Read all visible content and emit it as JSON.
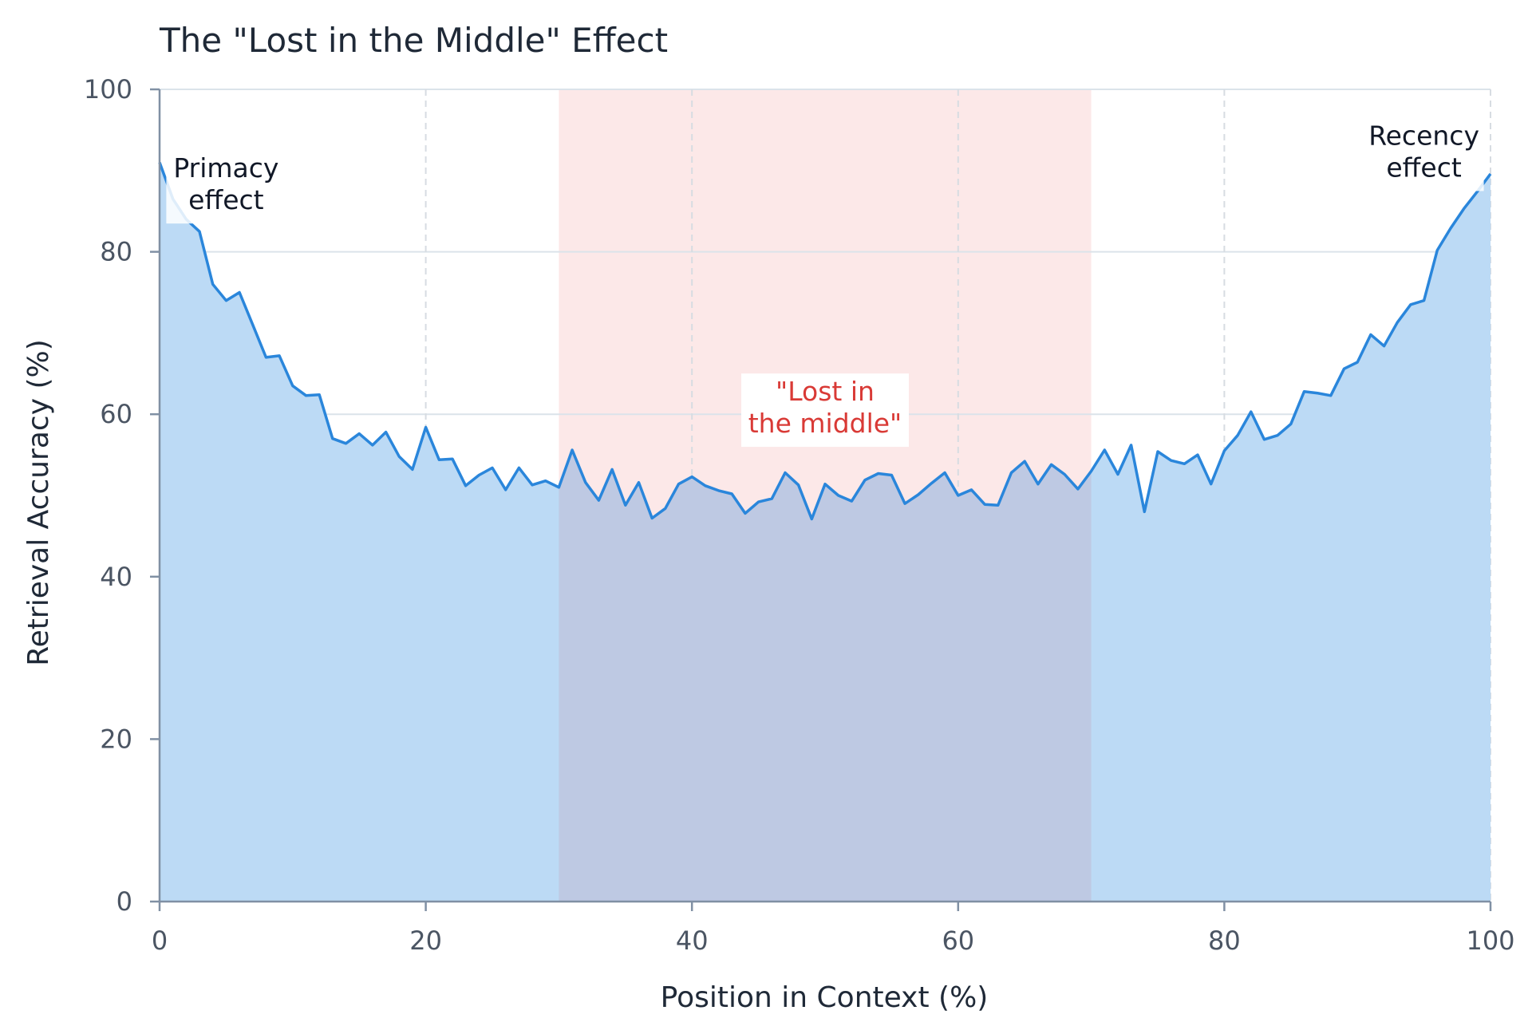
{
  "chart_data": {
    "type": "area",
    "title": "The \"Lost in the Middle\" Effect",
    "xlabel": "Position in Context (%)",
    "ylabel": "Retrieval Accuracy (%)",
    "xlim": [
      0,
      100
    ],
    "ylim": [
      0,
      100
    ],
    "xticks": [
      0,
      20,
      40,
      60,
      80,
      100
    ],
    "yticks": [
      0,
      20,
      40,
      60,
      80,
      100
    ],
    "grid": true,
    "highlight_band": {
      "x_start": 30,
      "x_end": 70,
      "color": "#fce8e8"
    },
    "line_color": "#2a86db",
    "fill_color": "#bcdaf5",
    "band_overlap_color": "#bec9e3",
    "series": [
      {
        "x": [
          0,
          1,
          2,
          3,
          4,
          5,
          6,
          7,
          8,
          9,
          10,
          11,
          12,
          13,
          14,
          15,
          16,
          17,
          18,
          19,
          20,
          21,
          22,
          23,
          24,
          25,
          26,
          27,
          28,
          29,
          30,
          31,
          32,
          33,
          34,
          35,
          36,
          37,
          38,
          39,
          40,
          41,
          42,
          43,
          44,
          45,
          46,
          47,
          48,
          49,
          50,
          51,
          52,
          53,
          54,
          55,
          56,
          57,
          58,
          59,
          60,
          61,
          62,
          63,
          64,
          65,
          66,
          67,
          68,
          69,
          70,
          71,
          72,
          73,
          74,
          75,
          76,
          77,
          78,
          79,
          80,
          81,
          82,
          83,
          84,
          85,
          86,
          87,
          88,
          89,
          90,
          91,
          92,
          93,
          94,
          95,
          96,
          97,
          98,
          99,
          100
        ],
        "values": [
          91,
          86.5,
          84,
          82.5,
          76,
          74,
          75,
          71,
          67,
          67.2,
          63.5,
          62.3,
          62.4,
          57,
          56.4,
          57.6,
          56.2,
          57.8,
          54.8,
          53.2,
          58.4,
          54.4,
          54.5,
          51.2,
          52.5,
          53.4,
          50.7,
          53.4,
          51.3,
          51.8,
          51,
          55.6,
          51.6,
          49.4,
          53.2,
          48.8,
          51.6,
          47.2,
          48.4,
          51.4,
          52.3,
          51.2,
          50.6,
          50.2,
          47.8,
          49.2,
          49.6,
          52.8,
          51.3,
          47.1,
          51.4,
          50,
          49.3,
          51.9,
          52.7,
          52.5,
          49,
          50.1,
          51.5,
          52.8,
          50,
          50.7,
          48.9,
          48.8,
          52.8,
          54.2,
          51.4,
          53.8,
          52.6,
          50.8,
          53,
          55.6,
          52.6,
          56.2,
          48,
          55.4,
          54.3,
          53.9,
          55,
          51.4,
          55.5,
          57.4,
          60.3,
          56.9,
          57.4,
          58.8,
          62.8,
          62.6,
          62.3,
          65.6,
          66.4,
          69.8,
          68.4,
          71.3,
          73.5,
          74,
          80.2,
          82.9,
          85.3,
          87.4,
          89.6
        ]
      }
    ],
    "annotations": [
      {
        "x": 5,
        "y": 88,
        "lines": [
          "Primacy",
          "effect"
        ],
        "style": "dark"
      },
      {
        "x": 95,
        "y": 92,
        "lines": [
          "Recency",
          "effect"
        ],
        "style": "dark"
      },
      {
        "x": 50,
        "y": 60.5,
        "lines": [
          "\"Lost in",
          "the middle\""
        ],
        "style": "red"
      }
    ]
  }
}
